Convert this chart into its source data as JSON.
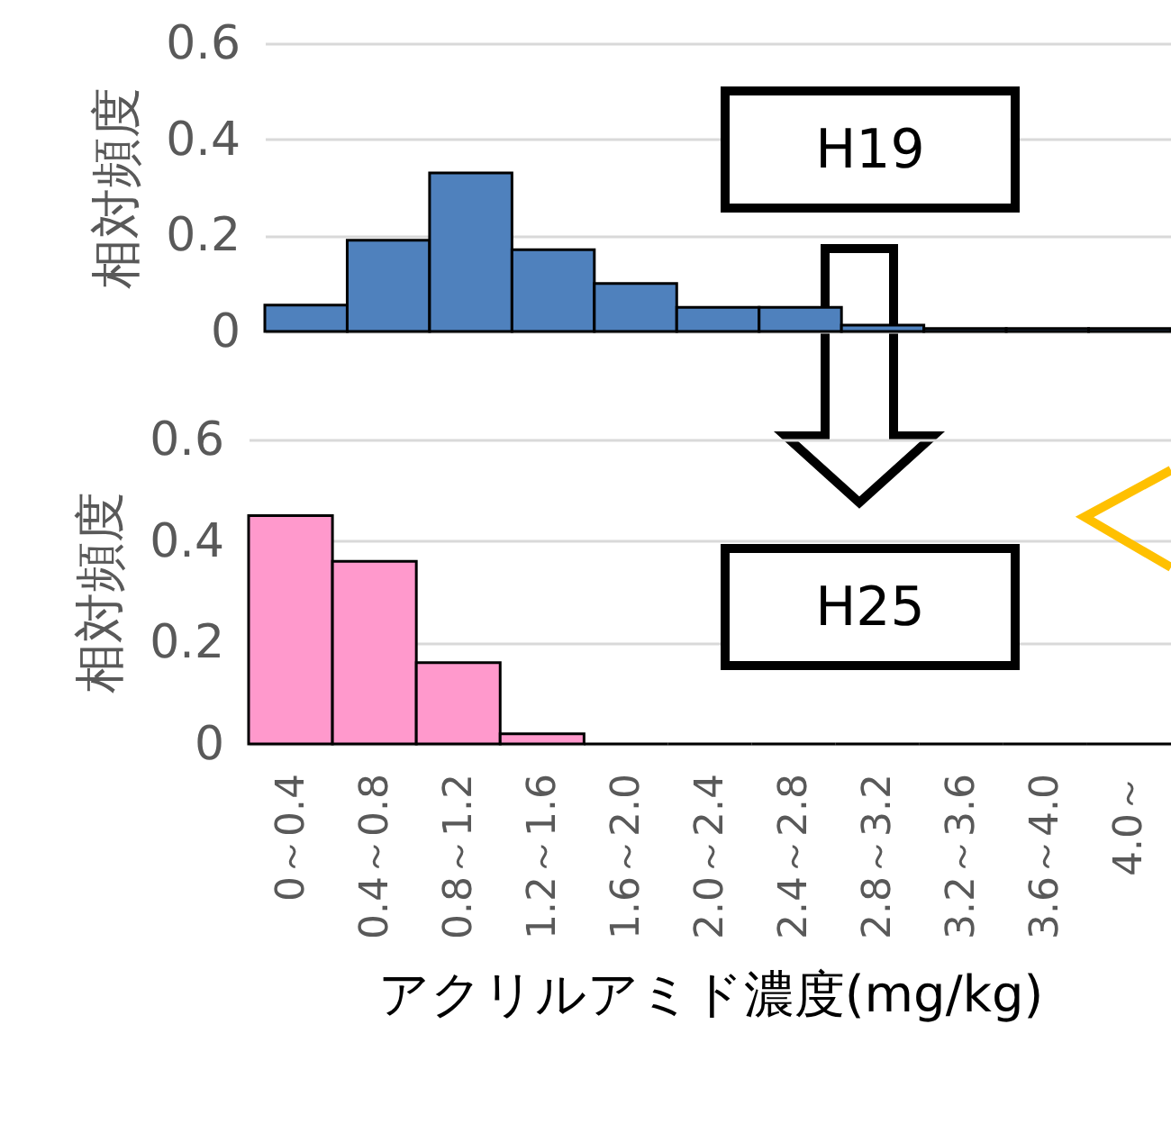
{
  "chart_data": [
    {
      "type": "bar",
      "categories": [
        null,
        null,
        null,
        null,
        null,
        null,
        null,
        null,
        null,
        null,
        null
      ],
      "values": [
        0.055,
        0.19,
        0.33,
        0.17,
        0.1,
        0.05,
        0.05,
        0.013,
        0.006,
        0.006,
        0.006
      ],
      "color": "#4f81bd",
      "ylabel": "相対頻度",
      "ylim": [
        0,
        0.6
      ],
      "yticks": [
        0,
        0.2,
        0.4,
        0.6
      ],
      "grid": "y",
      "tick_labels": "y",
      "annotations": [
        "H19"
      ]
    },
    {
      "type": "bar",
      "categories": [
        "0～0.4",
        "0.4～0.8",
        "0.8～1.2",
        "1.2～1.6",
        "1.6～2.0",
        "2.0～2.4",
        "2.4～2.8",
        "2.8～3.2",
        "3.2～3.6",
        "3.6～4.0",
        "4.0～"
      ],
      "values": [
        0.45,
        0.36,
        0.16,
        0.02,
        0,
        0,
        0,
        0,
        0,
        0,
        0
      ],
      "color": "#ff99cc",
      "xlabel": "アクリルアミド濃度(mg/kg)",
      "ylabel": "相対頻度",
      "ylim": [
        0,
        0.6
      ],
      "yticks": [
        0,
        0.2,
        0.4,
        0.6
      ],
      "grid": "y",
      "annotations": [
        "H25"
      ]
    }
  ]
}
